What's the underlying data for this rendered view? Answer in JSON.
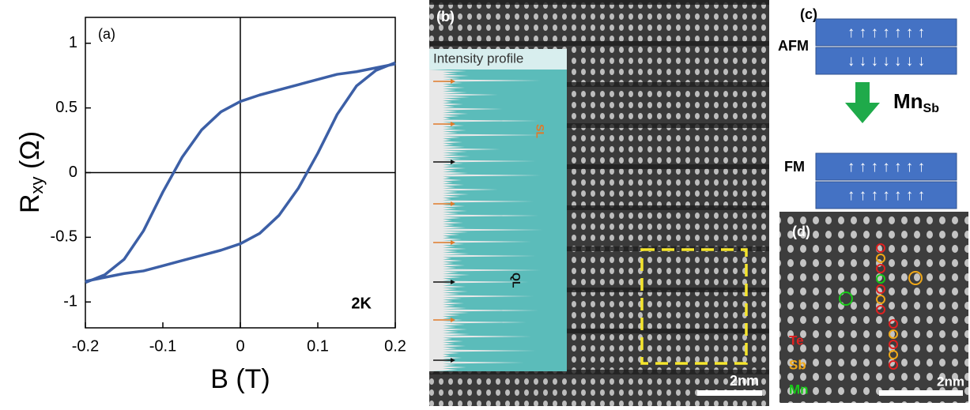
{
  "chart_data": {
    "type": "line",
    "annotation": "(a)",
    "temperature_label": "2K",
    "xlabel": "B (T)",
    "ylabel": {
      "main": "R",
      "sub": "xy",
      "unit": " (Ω)"
    },
    "x": [
      -0.2,
      -0.175,
      -0.15,
      -0.125,
      -0.1,
      -0.075,
      -0.05,
      -0.025,
      0,
      0.025,
      0.05,
      0.075,
      0.1,
      0.125,
      0.15,
      0.175,
      0.2
    ],
    "series": [
      {
        "color": "#3c5fa6",
        "values": [
          -0.85,
          -0.79,
          -0.67,
          -0.45,
          -0.15,
          0.12,
          0.33,
          0.47,
          0.55,
          0.6,
          0.64,
          0.68,
          0.72,
          0.76,
          0.78,
          0.81,
          0.84
        ]
      },
      {
        "color": "#3c5fa6",
        "values": [
          -0.84,
          -0.81,
          -0.78,
          -0.76,
          -0.72,
          -0.68,
          -0.64,
          -0.6,
          -0.55,
          -0.47,
          -0.33,
          -0.12,
          0.15,
          0.45,
          0.67,
          0.79,
          0.85
        ]
      }
    ],
    "xlim": [
      -0.2,
      0.2
    ],
    "ylim": [
      -1.2,
      1.2
    ],
    "xticks": [
      -0.2,
      -0.1,
      0,
      0.1,
      0.2
    ],
    "yticks": [
      -1,
      -0.5,
      0,
      0.5,
      1
    ]
  },
  "panel_b": {
    "label": "(b)",
    "inset_title": "Intensity profile",
    "sl": "SL",
    "ql": "QL",
    "scale": "2nm"
  },
  "panel_c": {
    "label": "(c)",
    "afm": "AFM",
    "fm": "FM",
    "arrows_up": "↑ ↑ ↑ ↑ ↑ ↑ ↑",
    "arrows_down": "↓ ↓ ↓ ↓ ↓ ↓ ↓",
    "dopant": "Mn",
    "dopant_sub": "Sb"
  },
  "panel_d": {
    "label": "(d)",
    "te": "Te",
    "sb": "Sb",
    "mn": "Mn",
    "scale": "2nm"
  }
}
